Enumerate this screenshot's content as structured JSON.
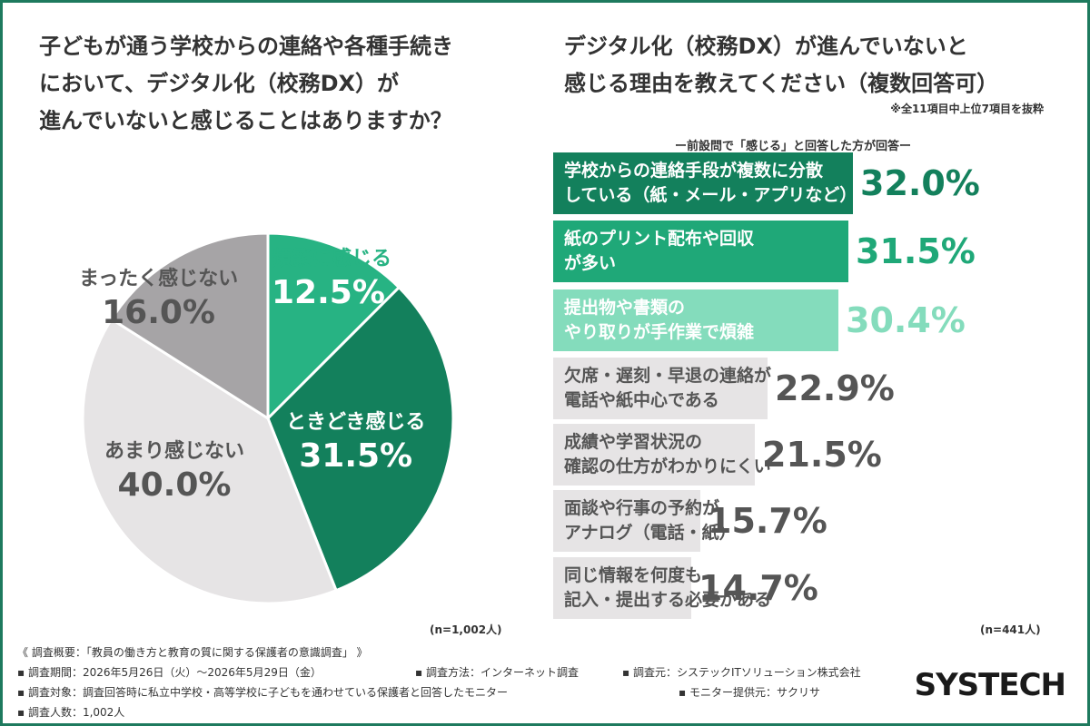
{
  "left_title": [
    "子どもが通う学校からの連絡や各種手続き",
    "において、デジタル化（校務DX）が",
    "進んでいないと感じることはありますか？"
  ],
  "right_title": [
    "デジタル化（校務DX）が進んでいないと",
    "感じる理由を教えてください（複数回答可）"
  ],
  "note": "※全11項目中上位7項目を抜粋",
  "subtitle": "ー前設問で「感じる」と回答した方が回答ー",
  "left_n": "(n=1,002人)",
  "right_n": "(n=441人)",
  "colors": {
    "dark_green": "#13805c",
    "mid_green": "#1fa878",
    "light_green": "#84dcbc",
    "light_gray": "#e6e4e5",
    "mid_gray": "#a6a4a6",
    "frame": "#1e7a5e"
  },
  "chart_data": [
    {
      "type": "pie",
      "slices": [
        {
          "label": "頻繁に感じる",
          "value": 12.5,
          "display": "12.5%",
          "color": "#27b383"
        },
        {
          "label": "ときどき感じる",
          "value": 31.5,
          "display": "31.5%",
          "color": "#13805c"
        },
        {
          "label": "あまり感じない",
          "value": 40.0,
          "display": "40.0%",
          "color": "#e6e4e5"
        },
        {
          "label": "まったく感じない",
          "value": 16.0,
          "display": "16.0%",
          "color": "#a6a4a6"
        }
      ]
    },
    {
      "type": "bar",
      "orientation": "horizontal",
      "xlim": [
        0,
        32.0
      ],
      "items": [
        {
          "label": [
            "学校からの連絡手段が複数に分散",
            "している（紙・メール・アプリなど）"
          ],
          "value": 32.0,
          "display": "32.0%",
          "color": "#13805c",
          "text_color": "#ffffff",
          "value_color": "#13805c"
        },
        {
          "label": [
            "紙のプリント配布や回収",
            "が多い"
          ],
          "value": 31.5,
          "display": "31.5%",
          "color": "#1fa878",
          "text_color": "#ffffff",
          "value_color": "#1fa878"
        },
        {
          "label": [
            "提出物や書類の",
            "やり取りが手作業で煩雑"
          ],
          "value": 30.4,
          "display": "30.4%",
          "color": "#84dcbc",
          "text_color": "#ffffff",
          "value_color": "#84dcbc"
        },
        {
          "label": [
            "欠席・遅刻・早退の連絡が",
            "電話や紙中心である"
          ],
          "value": 22.9,
          "display": "22.9%",
          "color": "#e6e4e5",
          "text_color": "#555555",
          "value_color": "#555555"
        },
        {
          "label": [
            "成績や学習状況の",
            "確認の仕方がわかりにくい"
          ],
          "value": 21.5,
          "display": "21.5%",
          "color": "#e6e4e5",
          "text_color": "#555555",
          "value_color": "#555555"
        },
        {
          "label": [
            "面談や行事の予約が",
            "アナログ（電話・紙）"
          ],
          "value": 15.7,
          "display": "15.7%",
          "color": "#e6e4e5",
          "text_color": "#555555",
          "value_color": "#555555"
        },
        {
          "label": [
            "同じ情報を何度も",
            "記入・提出する必要がある"
          ],
          "value": 14.7,
          "display": "14.7%",
          "color": "#e6e4e5",
          "text_color": "#555555",
          "value_color": "#555555"
        }
      ]
    }
  ],
  "footer": {
    "overview": "《 調査概要：「教員の働き方と教育の質に関する保護者の意識調査」 》",
    "period": "▪ 調査期間：2026年5月26日（火）〜2026年5月29日（金）",
    "method": "▪ 調査方法：インターネット調査",
    "source": "▪ 調査元：システックITソリューション株式会社",
    "target": "▪ 調査対象：調査回答時に私立中学校・高等学校に子どもを通わせている保護者と回答したモニター",
    "provider": "▪ モニター提供元：サクリサ",
    "count": "▪ 調査人数：1,002人"
  },
  "logo": "SYSTECH"
}
